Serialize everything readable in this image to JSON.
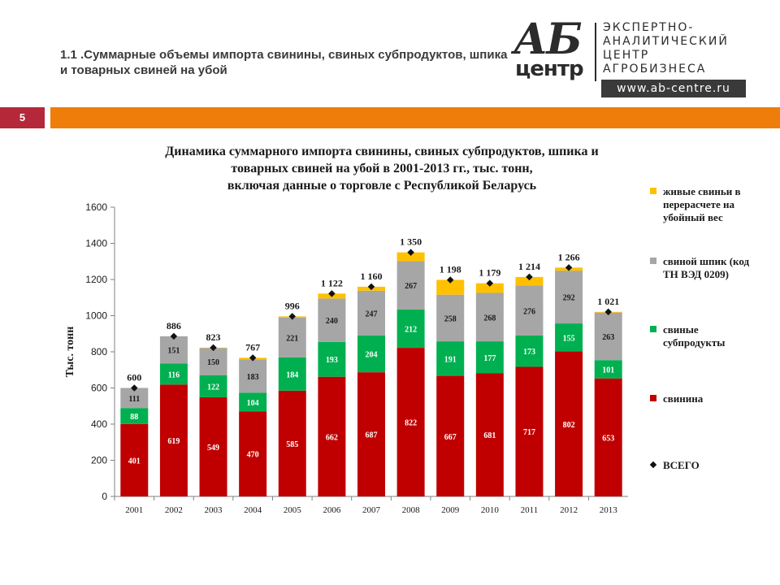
{
  "slide": {
    "title": "1.1 .Суммарные объемы импорта свинины, свиных субпродуктов, шпика и товарных свиней на убой",
    "page_number": "5"
  },
  "logo": {
    "mark_ab": "АБ",
    "mark_centr": "центр",
    "text": "ЭКСПЕРТНО-\nАНАЛИТИЧЕСКИЙ\nЦЕНТР\nАГРОБИЗНЕСА",
    "url": "www.ab-centre.ru"
  },
  "colors": {
    "accent_orange": "#ef7d0a",
    "badge_red": "#b5283a"
  },
  "chart_data": {
    "type": "bar",
    "stacked": true,
    "title": "Динамика суммарного импорта свинины, свиных субпродуктов, шпика и\nтоварных свиней на убой в 2001-2013 гг., тыс. тонн,\nвключая данные о торговле с Республикой Беларусь",
    "ylabel": "Тыс. тонн",
    "xlabel": "",
    "ylim": [
      0,
      1600
    ],
    "yticks": [
      "0",
      "200",
      "400",
      "600",
      "800",
      "1000",
      "1200",
      "1400",
      "1600"
    ],
    "categories": [
      "2001",
      "2002",
      "2003",
      "2004",
      "2005",
      "2006",
      "2007",
      "2008",
      "2009",
      "2010",
      "2011",
      "2012",
      "2013"
    ],
    "series": [
      {
        "name": "свинина",
        "color": "#c00000",
        "values": [
          401,
          619,
          549,
          470,
          585,
          662,
          687,
          822,
          667,
          681,
          717,
          802,
          653
        ],
        "labels": [
          "401",
          "619",
          "549",
          "470",
          "585",
          "662",
          "687",
          "822",
          "667",
          "681",
          "717",
          "802",
          "653"
        ]
      },
      {
        "name": "свиные субпродукты",
        "color": "#00b050",
        "values": [
          88,
          116,
          122,
          104,
          184,
          193,
          204,
          212,
          191,
          177,
          173,
          155,
          101
        ],
        "labels": [
          "88",
          "116",
          "122",
          "104",
          "184",
          "193",
          "204",
          "212",
          "191",
          "177",
          "173",
          "155",
          "101"
        ]
      },
      {
        "name": "свиной шпик (код ТН ВЭД 0209)",
        "color": "#a6a6a6",
        "values": [
          111,
          151,
          150,
          183,
          221,
          240,
          247,
          267,
          258,
          268,
          276,
          292,
          263
        ],
        "labels": [
          "111",
          "151",
          "150",
          "183",
          "221",
          "240",
          "247",
          "267",
          "258",
          "268",
          "276",
          "292",
          "263"
        ]
      },
      {
        "name": "живые свиньи в перерасчете на убойный вес",
        "color": "#ffc000",
        "values": [
          0,
          0,
          2,
          10,
          6,
          27,
          22,
          49,
          82,
          53,
          48,
          17,
          4
        ]
      }
    ],
    "totals": {
      "name": "ВСЕГО",
      "values": [
        600,
        886,
        823,
        767,
        996,
        1122,
        1160,
        1350,
        1198,
        1179,
        1214,
        1266,
        1021
      ],
      "labels": [
        "600",
        "886",
        "823",
        "767",
        "996",
        "1 122",
        "1 160",
        "1 350",
        "1 198",
        "1 179",
        "1 214",
        "1 266",
        "1 021"
      ]
    },
    "legend_position": "right",
    "grid": false
  }
}
